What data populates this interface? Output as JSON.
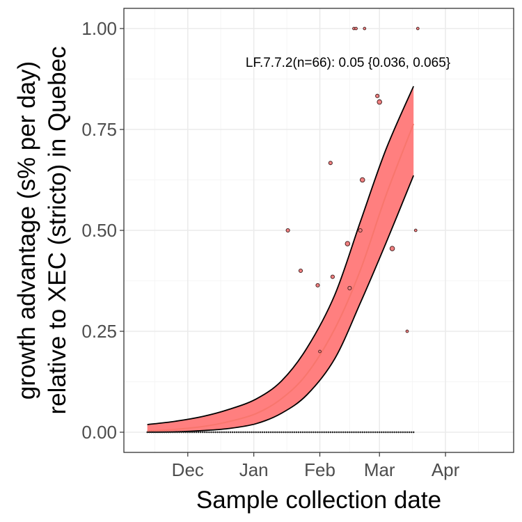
{
  "chart_data": {
    "type": "scatter",
    "xlabel": "Sample collection date",
    "ylabel_lines": [
      "growth advantage (s% per day)",
      "relative to XEC (stricto) in Quebec"
    ],
    "annotation": "LF.7.7.2(n=66): 0.05 {0.036, 0.065}",
    "x_ticks": [
      {
        "date": "2024-12-01",
        "label": "Dec"
      },
      {
        "date": "2025-01-01",
        "label": "Jan"
      },
      {
        "date": "2025-02-01",
        "label": "Feb"
      },
      {
        "date": "2025-03-01",
        "label": "Mar"
      },
      {
        "date": "2025-04-01",
        "label": "Apr"
      }
    ],
    "y_ticks": [
      "0.00",
      "0.25",
      "0.50",
      "0.75",
      "1.00"
    ],
    "xlim": [
      "2024-11-01",
      "2025-05-03"
    ],
    "ylim": [
      -0.05,
      1.05
    ],
    "grid": true,
    "colors": {
      "fit": "#f8766d",
      "ribbon": "#ff7f7f",
      "ribbon_edge": "#000000",
      "point_fill": "#f08080",
      "point_edge": "#3a1a1a",
      "panel_border": "#333333",
      "grid_major": "#ebebeb",
      "grid_minor": "#f5f5f5"
    },
    "fit": {
      "x": [
        "2024-11-12",
        "2024-11-25",
        "2024-12-08",
        "2024-12-20",
        "2025-01-02",
        "2025-01-14",
        "2025-01-26",
        "2025-02-08",
        "2025-02-20",
        "2025-03-04",
        "2025-03-17"
      ],
      "y": [
        0.003,
        0.007,
        0.014,
        0.026,
        0.046,
        0.083,
        0.145,
        0.256,
        0.401,
        0.586,
        0.764
      ]
    },
    "ribbon_upper": {
      "x": [
        "2024-11-12",
        "2024-11-25",
        "2024-12-08",
        "2024-12-20",
        "2025-01-02",
        "2025-01-14",
        "2025-01-26",
        "2025-02-08",
        "2025-02-20",
        "2025-03-04",
        "2025-03-17"
      ],
      "y": [
        0.019,
        0.027,
        0.039,
        0.056,
        0.082,
        0.127,
        0.209,
        0.34,
        0.521,
        0.7,
        0.857
      ]
    },
    "ribbon_lower": {
      "x": [
        "2024-11-12",
        "2024-11-25",
        "2024-12-08",
        "2024-12-20",
        "2025-01-02",
        "2025-01-14",
        "2025-01-26",
        "2025-02-08",
        "2025-02-20",
        "2025-03-04",
        "2025-03-17"
      ],
      "y": [
        0.0,
        0.001,
        0.004,
        0.009,
        0.021,
        0.047,
        0.093,
        0.182,
        0.32,
        0.468,
        0.636
      ]
    },
    "points": [
      {
        "date": "2025-01-17",
        "y": 0.5,
        "size": 2
      },
      {
        "date": "2025-01-23",
        "y": 0.4,
        "size": 2
      },
      {
        "date": "2025-01-31",
        "y": 0.364,
        "size": 2
      },
      {
        "date": "2025-02-01",
        "y": 0.2,
        "size": 1
      },
      {
        "date": "2025-02-06",
        "y": 0.667,
        "size": 2
      },
      {
        "date": "2025-02-07",
        "y": 0.385,
        "size": 2
      },
      {
        "date": "2025-02-14",
        "y": 0.467,
        "size": 3
      },
      {
        "date": "2025-02-15",
        "y": 0.357,
        "size": 2
      },
      {
        "date": "2025-02-17",
        "y": 1.0,
        "size": 1
      },
      {
        "date": "2025-02-18",
        "y": 1.0,
        "size": 1
      },
      {
        "date": "2025-02-20",
        "y": 0.5,
        "size": 2
      },
      {
        "date": "2025-02-21",
        "y": 0.625,
        "size": 3
      },
      {
        "date": "2025-02-22",
        "y": 1.0,
        "size": 1
      },
      {
        "date": "2025-02-28",
        "y": 0.833,
        "size": 2
      },
      {
        "date": "2025-03-01",
        "y": 0.818,
        "size": 3
      },
      {
        "date": "2025-03-07",
        "y": 0.455,
        "size": 3
      },
      {
        "date": "2025-03-14",
        "y": 0.25,
        "size": 1
      },
      {
        "date": "2025-03-18",
        "y": 0.5,
        "size": 1
      },
      {
        "date": "2025-03-19",
        "y": 1.0,
        "size": 1
      }
    ],
    "zero_points": {
      "start": "2024-11-12",
      "end": "2025-03-17",
      "y": 0.0
    }
  }
}
